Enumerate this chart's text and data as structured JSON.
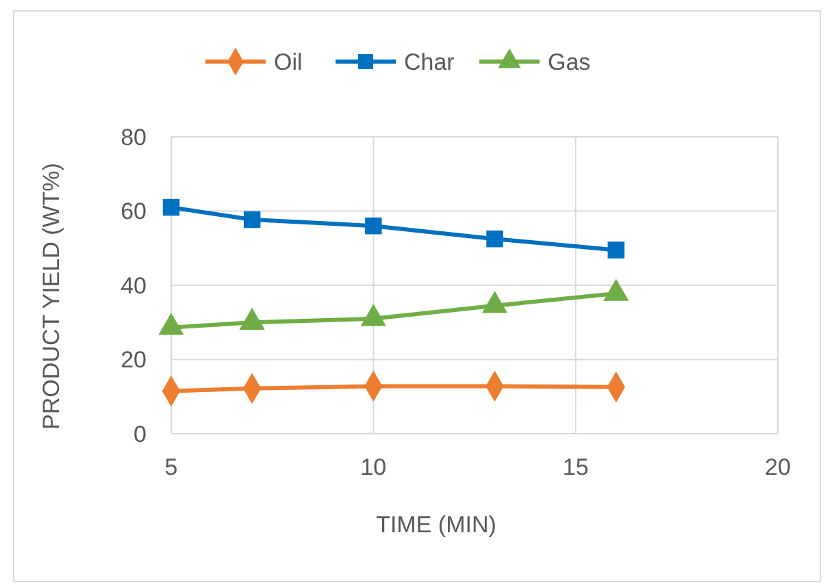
{
  "chart_data": {
    "type": "line",
    "xlabel": "TIME (MIN)",
    "ylabel": "PRODUCT YIELD (WT%)",
    "x": [
      5,
      7,
      10,
      13,
      16
    ],
    "series": [
      {
        "name": "Oil",
        "color": "#ed7d31",
        "values": [
          11.5,
          12.2,
          12.8,
          12.8,
          12.6
        ],
        "marker": "diamond"
      },
      {
        "name": "Char",
        "color": "#0070c0",
        "values": [
          61,
          57.7,
          56,
          52.5,
          49.5
        ],
        "marker": "square"
      },
      {
        "name": "Gas",
        "color": "#70ad47",
        "values": [
          28.6,
          30,
          31,
          34.5,
          37.8
        ],
        "marker": "triangle"
      }
    ],
    "xlim": [
      5,
      20
    ],
    "xticks": [
      5,
      10,
      15,
      20
    ],
    "ylim": [
      0,
      80
    ],
    "yticks": [
      0,
      20,
      40,
      60,
      80
    ],
    "grid": true,
    "legend": "top",
    "line_style": "solid"
  }
}
